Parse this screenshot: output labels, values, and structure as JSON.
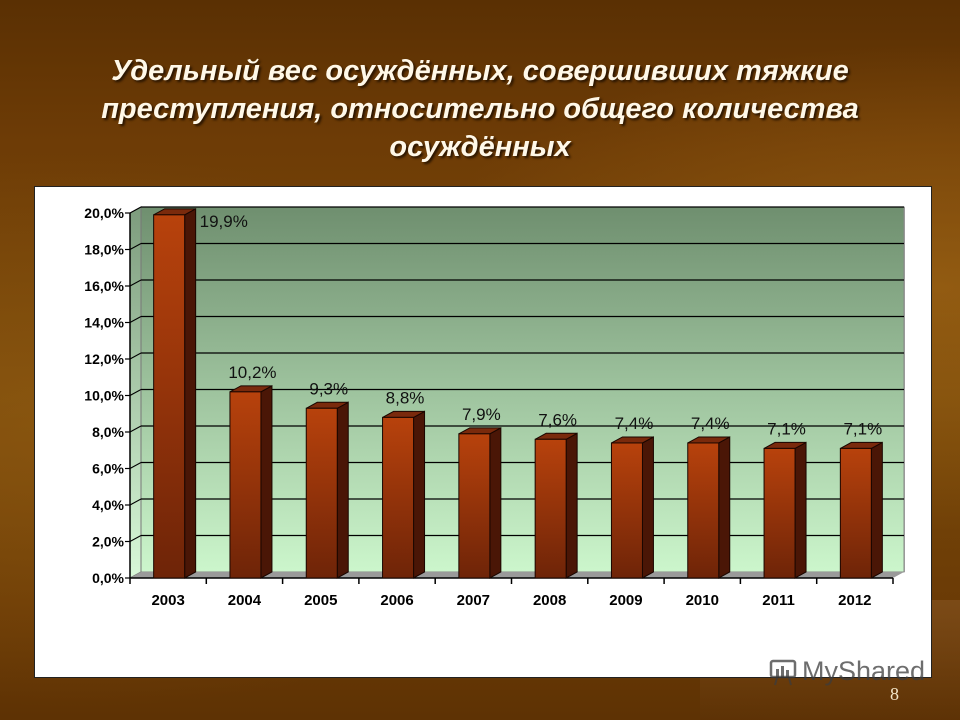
{
  "slide": {
    "title": "Удельный вес осуждённых, совершивших тяжкие преступления, относительно общего количества осуждённых",
    "title_lines": [
      "Удельный вес осуждённых, совершивших тяжкие",
      "преступления, относительно общего количества",
      "осуждённых"
    ],
    "slide_number": "8",
    "watermark": "MyShared"
  },
  "colors": {
    "bar_front": "#a83a0a",
    "bar_side": "#4a1606",
    "bar_top": "#7a2a0c",
    "wall_top": "#6f8f6f",
    "wall_bottom": "#ccf6cc",
    "floor": "#9a9a9a",
    "background": "#6e3c06"
  },
  "chart_data": {
    "type": "bar",
    "title": "Удельный вес осуждённых, совершивших тяжкие преступления, относительно общего количества осуждённых",
    "xlabel": "",
    "ylabel": "",
    "categories": [
      "2003",
      "2004",
      "2005",
      "2006",
      "2007",
      "2008",
      "2009",
      "2010",
      "2011",
      "2012"
    ],
    "values": [
      19.9,
      10.2,
      9.3,
      8.8,
      7.9,
      7.6,
      7.4,
      7.4,
      7.1,
      7.1
    ],
    "data_labels": [
      "19,9%",
      "10,2%",
      "9,3%",
      "8,8%",
      "7,9%",
      "7,6%",
      "7,4%",
      "7,4%",
      "7,1%",
      "7,1%"
    ],
    "y_ticks": [
      0,
      2,
      4,
      6,
      8,
      10,
      12,
      14,
      16,
      18,
      20
    ],
    "y_tick_labels": [
      "0,0%",
      "2,0%",
      "4,0%",
      "6,0%",
      "8,0%",
      "10,0%",
      "12,0%",
      "14,0%",
      "16,0%",
      "18,0%",
      "20,0%"
    ],
    "ylim": [
      0,
      20
    ],
    "grid": true,
    "legend": null,
    "style": "3d-column"
  }
}
